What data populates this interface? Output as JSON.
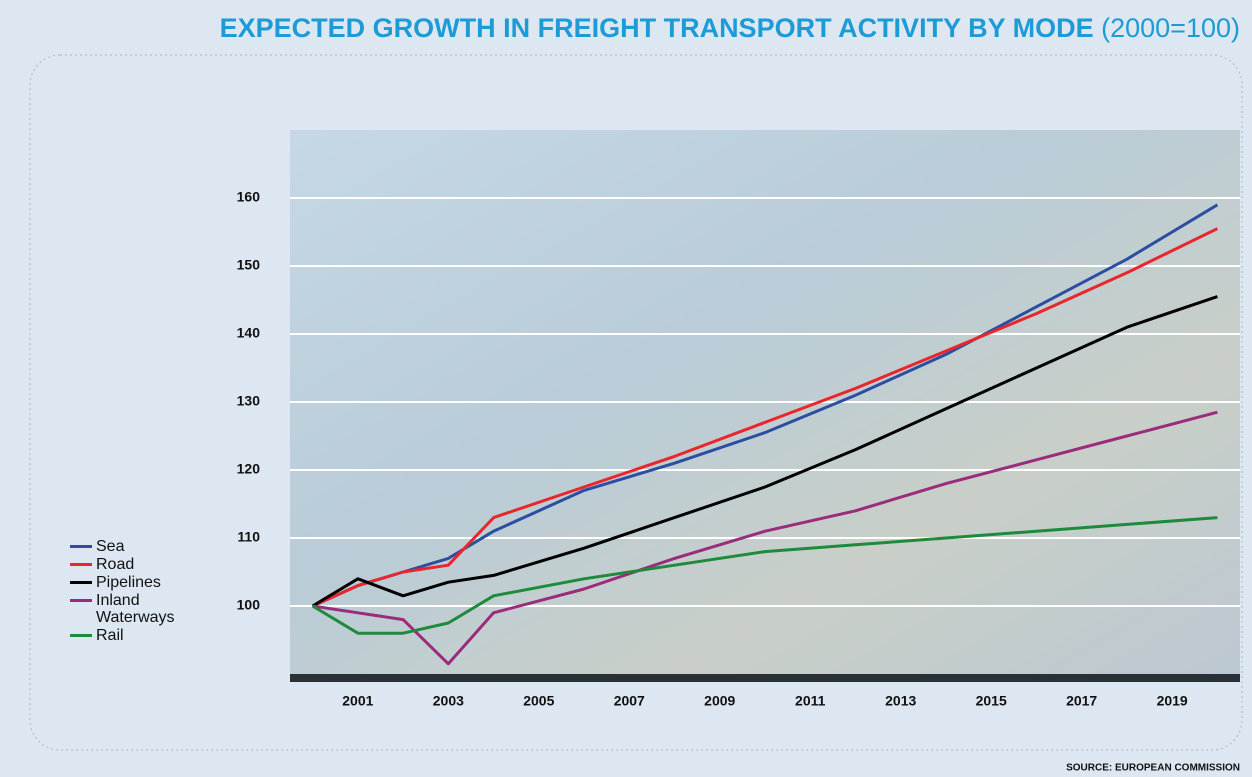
{
  "chart_data": {
    "type": "line",
    "title": "EXPECTED GROWTH IN FREIGHT TRANSPORT ACTIVITY BY MODE",
    "subtitle": "(2000=100)",
    "source": "SOURCE: EUROPEAN COMMISSION",
    "x": [
      2000,
      2001,
      2002,
      2003,
      2004,
      2006,
      2008,
      2010,
      2012,
      2014,
      2016,
      2018,
      2020
    ],
    "xlim": [
      1999.5,
      2020.5
    ],
    "xticks": [
      2001,
      2003,
      2005,
      2007,
      2009,
      2011,
      2013,
      2015,
      2017,
      2019
    ],
    "ylim": [
      90,
      170
    ],
    "yticks": [
      100,
      110,
      120,
      130,
      140,
      150,
      160
    ],
    "grid": true,
    "legend": "left",
    "series": [
      {
        "name": "Sea",
        "color": "#2b4ea2",
        "values": [
          100,
          103,
          105,
          107,
          111,
          117,
          121,
          125.5,
          131,
          137,
          144,
          151,
          159
        ]
      },
      {
        "name": "Road",
        "color": "#e8262b",
        "values": [
          100,
          103,
          105,
          106,
          113,
          117.5,
          122,
          127,
          132,
          137.5,
          143,
          149,
          155.5
        ]
      },
      {
        "name": "Pipelines",
        "color": "#000000",
        "values": [
          100,
          104,
          101.5,
          103.5,
          104.5,
          108.5,
          113,
          117.5,
          123,
          129,
          135,
          141,
          145.5
        ]
      },
      {
        "name": "Inland Waterways",
        "color": "#9b2b7b",
        "values": [
          100,
          99,
          98,
          91.5,
          99,
          102.5,
          107,
          111,
          114,
          118,
          121.5,
          125,
          128.5
        ]
      },
      {
        "name": "Rail",
        "color": "#1e8a3b",
        "values": [
          100,
          96,
          96,
          97.5,
          101.5,
          104,
          106,
          108,
          109,
          110,
          111,
          112,
          113
        ]
      }
    ]
  }
}
